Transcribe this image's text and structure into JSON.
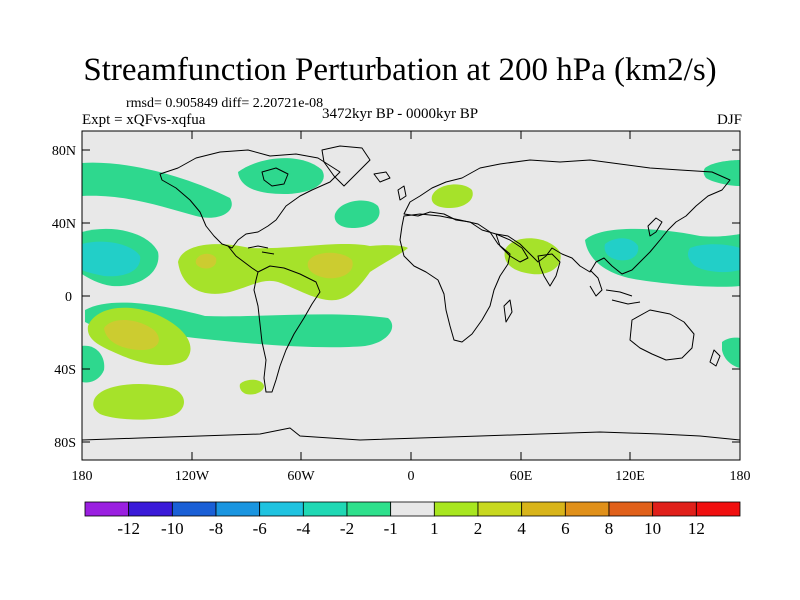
{
  "header": {
    "title": "Streamfunction Perturbation at 200 hPa (km2/s)",
    "stats": "rmsd= 0.905849 diff= 2.20721e-08",
    "experiment": "Expt = xQFvs-xqfua",
    "period": "3472kyr BP - 0000kyr BP",
    "season": "DJF"
  },
  "map": {
    "lat_labels": [
      "80N",
      "40N",
      "0",
      "40S",
      "80S"
    ],
    "lon_labels": [
      "180",
      "120W",
      "60W",
      "0",
      "60E",
      "120E",
      "180"
    ],
    "background_color": "#e8e8e8"
  },
  "colorbar": {
    "labels": [
      "-12",
      "-10",
      "-8",
      "-6",
      "-4",
      "-2",
      "-1",
      "1",
      "2",
      "4",
      "6",
      "8",
      "10",
      "12"
    ],
    "colors": [
      "#9a1fe0",
      "#3a1ad8",
      "#1a5fd6",
      "#1a95e0",
      "#1fc3e0",
      "#1fd8b4",
      "#2ee08c",
      "#e8e8e8",
      "#a8e61f",
      "#c8d81f",
      "#d8b41a",
      "#e0901a",
      "#e0601a",
      "#e0201a",
      "#f00f0f"
    ]
  },
  "fields": {
    "neg2": "#2ed88e",
    "neg4": "#22cfc8",
    "pos2": "#a6e22a",
    "pos4": "#cccc30"
  }
}
